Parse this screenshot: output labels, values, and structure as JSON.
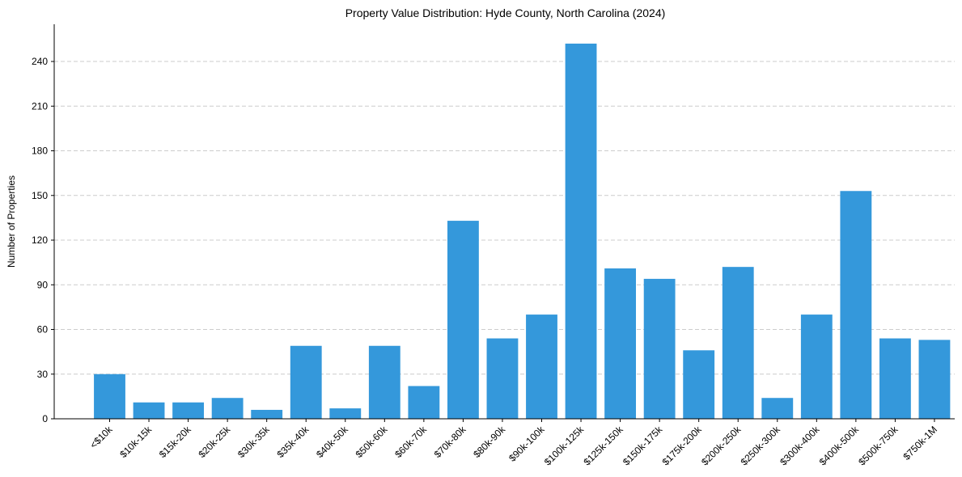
{
  "chart_data": {
    "type": "bar",
    "title": "Property Value Distribution: Hyde County, North Carolina (2024)",
    "xlabel": "",
    "ylabel": "Number of Properties",
    "categories": [
      "<$10k",
      "$10k-15k",
      "$15k-20k",
      "$20k-25k",
      "$30k-35k",
      "$35k-40k",
      "$40k-50k",
      "$50k-60k",
      "$60k-70k",
      "$70k-80k",
      "$80k-90k",
      "$90k-100k",
      "$100k-125k",
      "$125k-150k",
      "$150k-175k",
      "$175k-200k",
      "$200k-250k",
      "$250k-300k",
      "$300k-400k",
      "$400k-500k",
      "$500k-750k",
      "$750k-1M"
    ],
    "values": [
      30,
      11,
      11,
      14,
      6,
      49,
      7,
      49,
      22,
      133,
      54,
      70,
      252,
      101,
      94,
      46,
      102,
      14,
      70,
      153,
      54,
      53
    ],
    "ylim": [
      0,
      265
    ],
    "yticks": [
      0,
      30,
      60,
      90,
      120,
      150,
      180,
      210,
      240
    ],
    "grid": "y-dashed",
    "bar_color": "#3498db",
    "grid_color": "#cccccc",
    "axis_color": "#000000"
  }
}
